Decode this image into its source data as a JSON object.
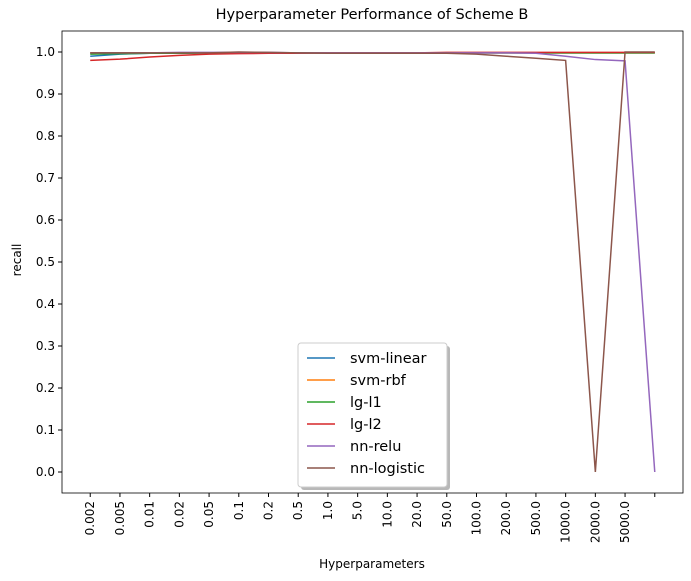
{
  "chart_data": {
    "type": "line",
    "title": "Hyperparameter Performance of Scheme B",
    "x_label": "Hyperparameters",
    "y_label": "recall",
    "categories": [
      "0.002",
      "0.005",
      "0.01",
      "0.02",
      "0.05",
      "0.1",
      "0.2",
      "0.5",
      "1.0",
      "5.0",
      "10.0",
      "20.0",
      "50.0",
      "100.0",
      "200.0",
      "500.0",
      "1000.0",
      "2000.0",
      "5000.0",
      null
    ],
    "series": [
      {
        "name": "svm-linear",
        "color": "#1f77b4",
        "values": [
          0.99,
          0.995,
          0.997,
          0.997,
          0.998,
          0.998,
          0.998,
          0.998,
          0.998,
          0.998,
          0.998,
          0.998,
          0.998,
          0.998,
          0.998,
          0.998,
          0.998,
          0.998,
          0.998,
          0.998
        ]
      },
      {
        "name": "svm-rbf",
        "color": "#ff7f0e",
        "values": [
          0.998,
          0.998,
          0.998,
          0.998,
          0.998,
          0.998,
          0.998,
          0.998,
          0.998,
          0.998,
          0.998,
          0.998,
          0.998,
          0.998,
          0.998,
          0.998,
          0.998,
          0.998,
          0.998,
          0.998
        ]
      },
      {
        "name": "lg-l1",
        "color": "#2ca02c",
        "values": [
          0.995,
          0.996,
          0.997,
          0.997,
          0.998,
          0.998,
          0.998,
          0.998,
          0.998,
          0.998,
          0.998,
          0.998,
          0.998,
          0.998,
          0.998,
          0.998,
          0.998,
          0.998,
          0.998,
          0.998
        ]
      },
      {
        "name": "lg-l2",
        "color": "#d62728",
        "values": [
          0.98,
          0.983,
          0.988,
          0.992,
          0.995,
          0.996,
          0.997,
          0.997,
          0.998,
          0.998,
          0.998,
          0.998,
          0.999,
          0.999,
          0.999,
          0.999,
          0.999,
          0.999,
          0.999,
          0.999
        ]
      },
      {
        "name": "nn-relu",
        "color": "#9467bd",
        "values": [
          0.998,
          0.998,
          0.998,
          0.999,
          0.999,
          0.999,
          0.999,
          0.998,
          0.998,
          0.998,
          0.998,
          0.998,
          0.998,
          0.998,
          0.998,
          0.997,
          0.99,
          0.982,
          0.979,
          0.0
        ]
      },
      {
        "name": "nn-logistic",
        "color": "#8c564b",
        "values": [
          0.998,
          0.998,
          0.998,
          0.998,
          0.998,
          1.0,
          0.999,
          0.998,
          0.997,
          0.997,
          0.997,
          0.997,
          0.997,
          0.995,
          0.99,
          0.985,
          0.98,
          0.0,
          1.0,
          1.0
        ]
      }
    ],
    "ylim": [
      -0.05,
      1.05
    ],
    "xlim": [
      -0.95,
      19.95
    ],
    "yticks": [
      {
        "value": 0,
        "label": "0.0"
      },
      {
        "value": 0.1,
        "label": "0.1"
      },
      {
        "value": 0.2,
        "label": "0.2"
      },
      {
        "value": 0.3,
        "label": "0.3"
      },
      {
        "value": 0.4,
        "label": "0.4"
      },
      {
        "value": 0.5,
        "label": "0.5"
      },
      {
        "value": 0.6,
        "label": "0.6"
      },
      {
        "value": 0.7,
        "label": "0.7"
      },
      {
        "value": 0.8,
        "label": "0.8"
      },
      {
        "value": 0.9,
        "label": "0.9"
      },
      {
        "value": 1,
        "label": "1.0"
      }
    ],
    "legend": "lower center"
  }
}
